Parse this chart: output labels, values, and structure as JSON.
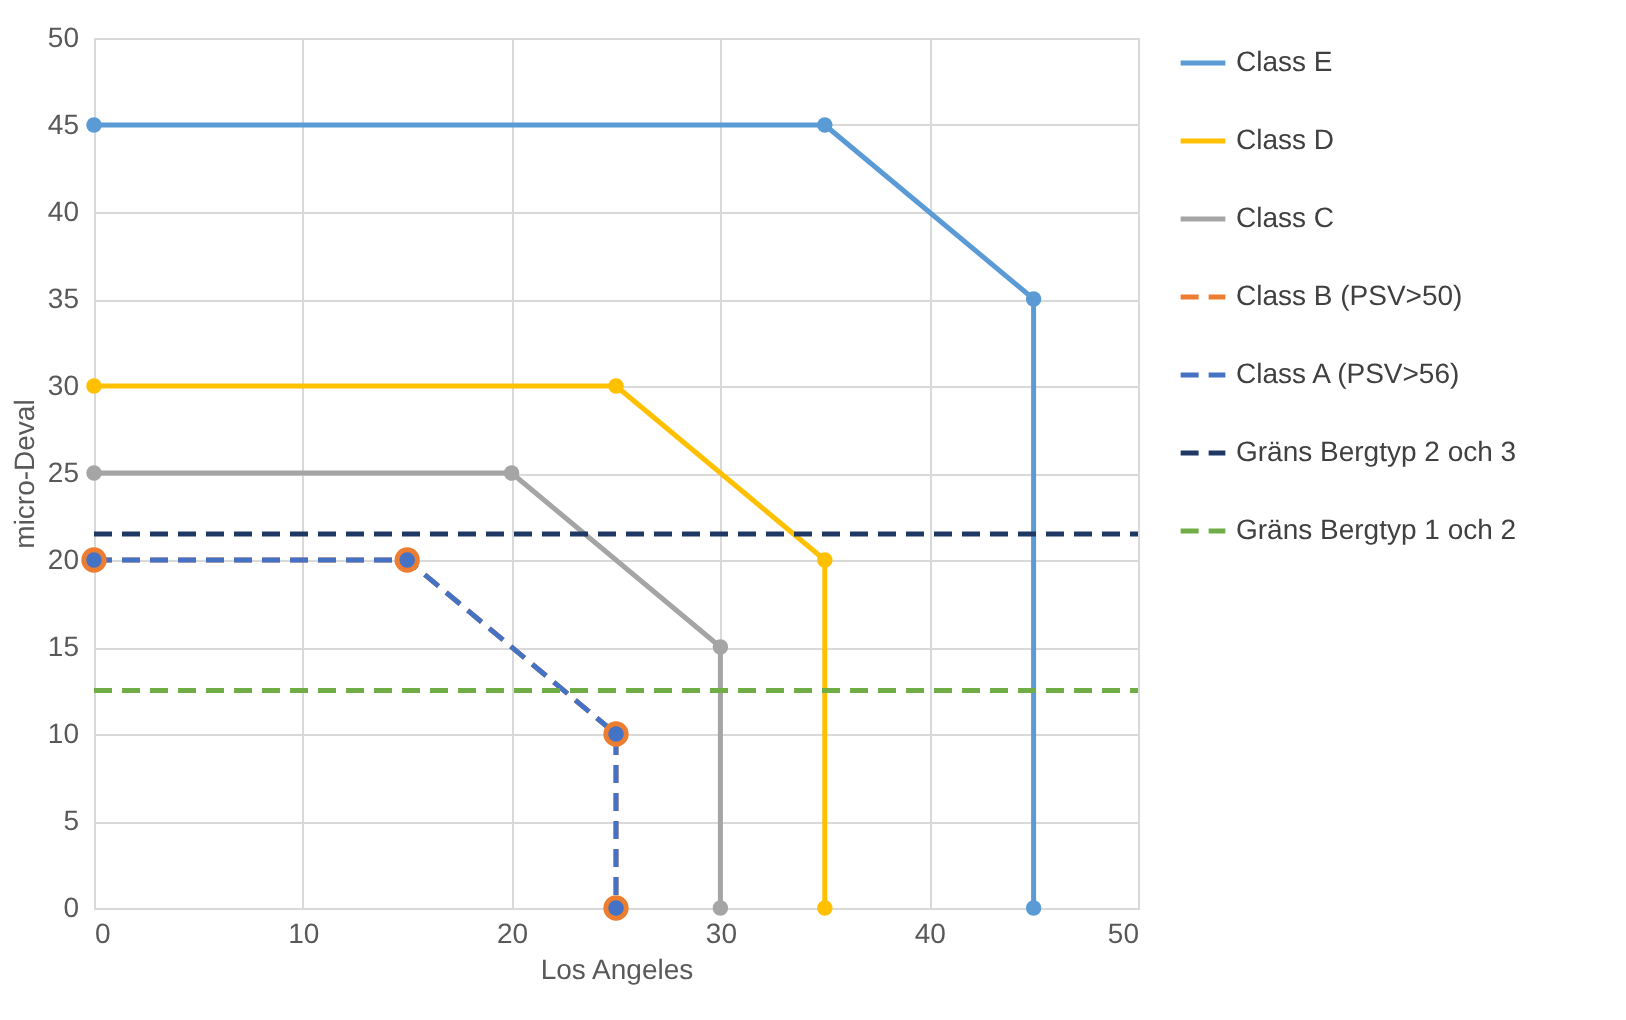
{
  "chart_data": {
    "type": "line",
    "xlabel": "Los Angeles",
    "ylabel": "micro-Deval",
    "xlim": [
      0,
      50
    ],
    "xticks": [
      0,
      10,
      20,
      30,
      40,
      50
    ],
    "ylim": [
      0,
      50
    ],
    "yticks": [
      0,
      5,
      10,
      15,
      20,
      25,
      30,
      35,
      40,
      45,
      50
    ],
    "grid": true,
    "legend": "right",
    "marker": "circle",
    "line_style": "solid",
    "series": [
      {
        "name": "Class E",
        "color": "#5b9bd5",
        "x": [
          0,
          35,
          45,
          45
        ],
        "values": [
          45,
          45,
          35,
          0
        ]
      },
      {
        "name": "Class D",
        "color": "#ffc000",
        "x": [
          0,
          25,
          35,
          35
        ],
        "values": [
          30,
          30,
          20,
          0
        ]
      },
      {
        "name": "Class C",
        "color": "#a5a5a5",
        "x": [
          0,
          20,
          30,
          30
        ],
        "values": [
          25,
          25,
          15,
          0
        ]
      },
      {
        "name": "Class B (PSV>50)",
        "color": "#ed7d31",
        "x": [
          0,
          15,
          25,
          25
        ],
        "values": [
          20,
          20,
          10,
          0
        ],
        "line_style": "dashed"
      },
      {
        "name": "Class A (PSV>56)",
        "color": "#4472c4",
        "x": [
          0,
          15,
          25,
          25
        ],
        "values": [
          20,
          20,
          10,
          0
        ],
        "line_style": "dashed"
      },
      {
        "name": "Gräns Bergtyp 2 och 3",
        "color": "#203864",
        "x": [
          0,
          50
        ],
        "values": [
          21.5,
          21.5
        ],
        "line_style": "dashed",
        "marker": "none"
      },
      {
        "name": "Gräns Bergtyp 1 och 2",
        "color": "#70ad47",
        "x": [
          0,
          50
        ],
        "values": [
          12.5,
          12.5
        ],
        "line_style": "dashed",
        "marker": "none"
      }
    ]
  }
}
